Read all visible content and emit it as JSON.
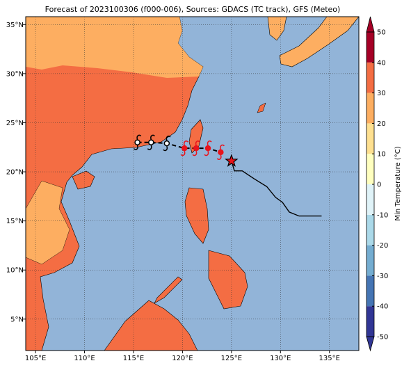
{
  "chart_data": {
    "type": "map",
    "title": "Forecast of 2023100306 (f000-006), Sources: GDACS (TC track), GFS (Meteo)",
    "xlim": [
      104,
      138
    ],
    "ylim": [
      1.8,
      35.8
    ],
    "xticks": [
      {
        "value": 105,
        "label": "105°E"
      },
      {
        "value": 110,
        "label": "110°E"
      },
      {
        "value": 115,
        "label": "115°E"
      },
      {
        "value": 120,
        "label": "120°E"
      },
      {
        "value": 125,
        "label": "125°E"
      },
      {
        "value": 130,
        "label": "130°E"
      },
      {
        "value": 135,
        "label": "135°E"
      }
    ],
    "yticks": [
      {
        "value": 5,
        "label": "5°N"
      },
      {
        "value": 10,
        "label": "10°N"
      },
      {
        "value": 15,
        "label": "15°N"
      },
      {
        "value": 20,
        "label": "20°N"
      },
      {
        "value": 25,
        "label": "25°N"
      },
      {
        "value": 30,
        "label": "30°N"
      },
      {
        "value": 35,
        "label": "35°N"
      }
    ],
    "grid": true,
    "past_track": {
      "lon": [
        125.0,
        125.3,
        126.1,
        127.3,
        128.6,
        129.5,
        130.2,
        130.9,
        131.9,
        134.2
      ],
      "lat": [
        21.1,
        20.1,
        20.1,
        19.3,
        18.5,
        17.4,
        16.9,
        15.9,
        15.5,
        15.5
      ]
    },
    "forecast_track": {
      "lon": [
        115.4,
        116.8,
        118.4,
        120.2,
        121.4,
        122.6,
        123.9
      ],
      "lat": [
        23.0,
        23.0,
        22.9,
        22.4,
        22.4,
        22.4,
        22.0
      ],
      "colors": [
        "#ffffff",
        "#ffffff",
        "#ffffff",
        "#e8141c",
        "#e8141c",
        "#e8141c",
        "#e8141c"
      ]
    },
    "current_position": {
      "lon": 125.0,
      "lat": 21.1
    },
    "colorbar": {
      "label": "Min Temperature (°C)",
      "levels": [
        -50,
        -40,
        -30,
        -20,
        -10,
        0,
        10,
        20,
        30,
        40,
        50
      ],
      "colors": [
        "#313695",
        "#4575b4",
        "#74add1",
        "#abd9e9",
        "#e0f3f8",
        "#ffffbf",
        "#fee090",
        "#fdae61",
        "#f46d43",
        "#a50026"
      ],
      "ticks": [
        -50,
        -40,
        -30,
        -20,
        -10,
        0,
        10,
        20,
        30,
        40,
        50
      ]
    }
  }
}
